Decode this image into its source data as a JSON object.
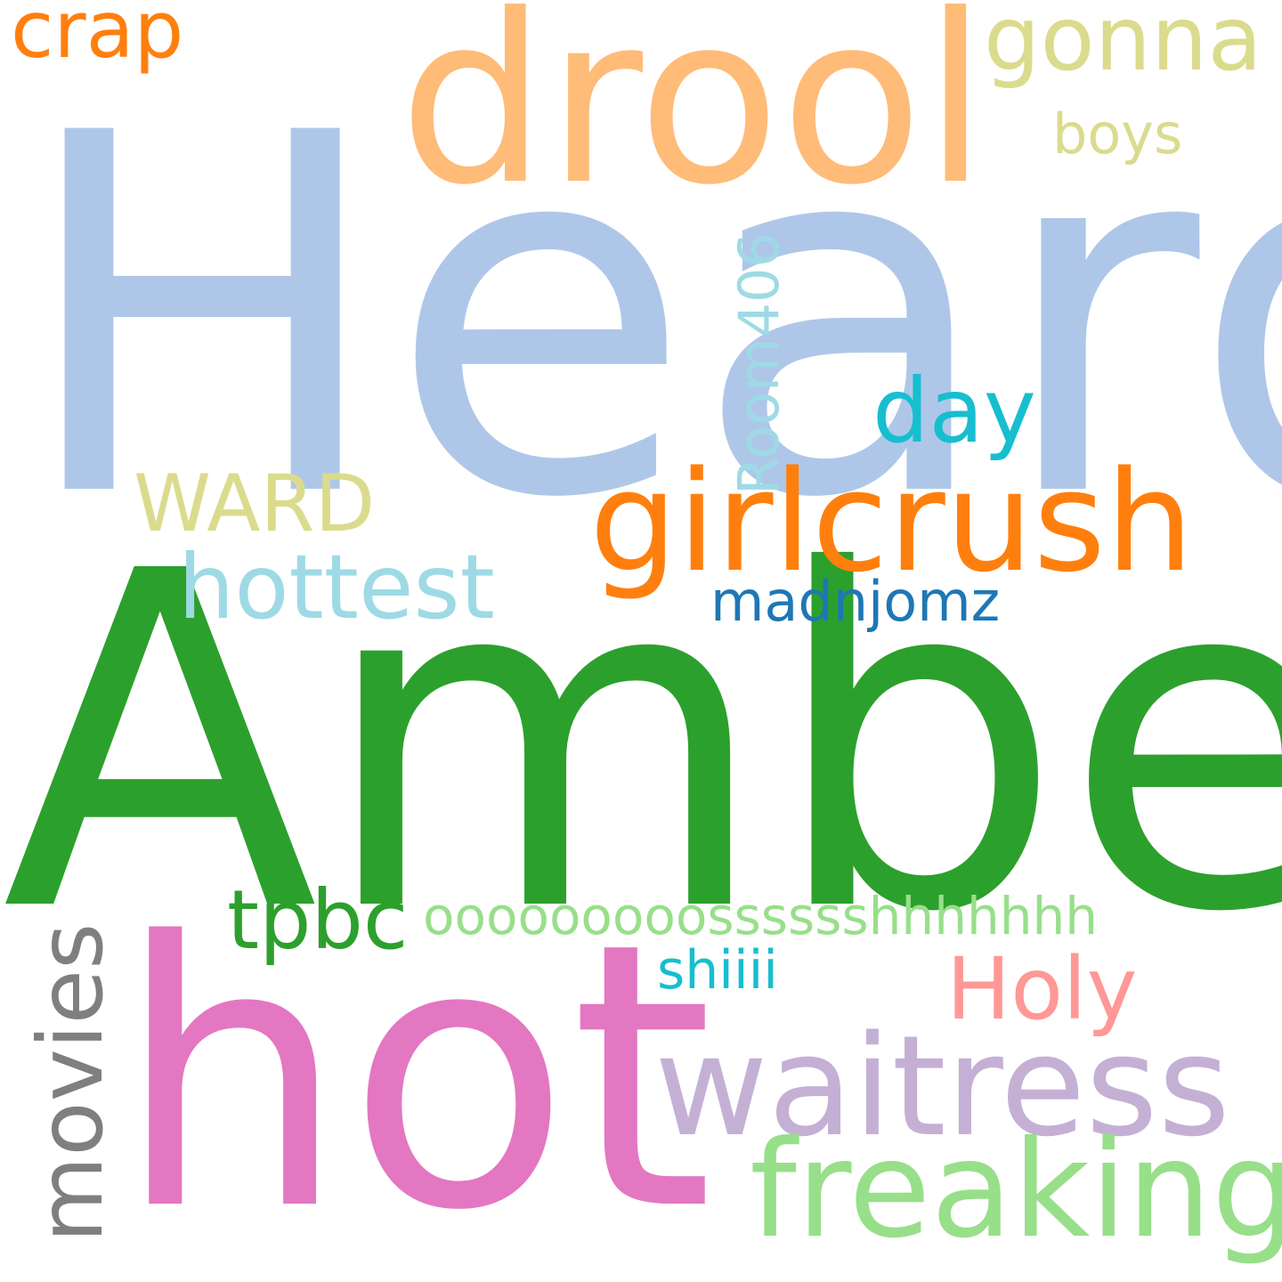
{
  "words": [
    {
      "text": "Heard",
      "color": "#aec7e8",
      "orientation": "horizontal"
    },
    {
      "text": "Amber",
      "color": "#2ca02c",
      "orientation": "horizontal"
    },
    {
      "text": "hot",
      "color": "#e377c2",
      "orientation": "horizontal"
    },
    {
      "text": "drool",
      "color": "#ffbb78",
      "orientation": "horizontal"
    },
    {
      "text": "girlcrush",
      "color": "#ff7f0e",
      "orientation": "horizontal"
    },
    {
      "text": "waitress",
      "color": "#c5b0d5",
      "orientation": "horizontal"
    },
    {
      "text": "freaking",
      "color": "#98df8a",
      "orientation": "horizontal"
    },
    {
      "text": "gonna",
      "color": "#dbdb8d",
      "orientation": "horizontal"
    },
    {
      "text": "crap",
      "color": "#ff7f0e",
      "orientation": "horizontal"
    },
    {
      "text": "day",
      "color": "#17becf",
      "orientation": "horizontal"
    },
    {
      "text": "hottest",
      "color": "#9edae5",
      "orientation": "horizontal"
    },
    {
      "text": "WARD",
      "color": "#dbdb8d",
      "orientation": "horizontal"
    },
    {
      "text": "boys",
      "color": "#dbdb8d",
      "orientation": "horizontal"
    },
    {
      "text": "madnjomz",
      "color": "#1f77b4",
      "orientation": "horizontal"
    },
    {
      "text": "tpbc",
      "color": "#2ca02c",
      "orientation": "horizontal"
    },
    {
      "text": "ooooooooosssssshhhhhhh",
      "color": "#98df8a",
      "orientation": "horizontal"
    },
    {
      "text": "shiiii",
      "color": "#17becf",
      "orientation": "horizontal"
    },
    {
      "text": "Holy",
      "color": "#ff9896",
      "orientation": "horizontal"
    },
    {
      "text": "Room406",
      "color": "#9edae5",
      "orientation": "vertical"
    },
    {
      "text": "movies",
      "color": "#7f7f7f",
      "orientation": "vertical"
    }
  ]
}
